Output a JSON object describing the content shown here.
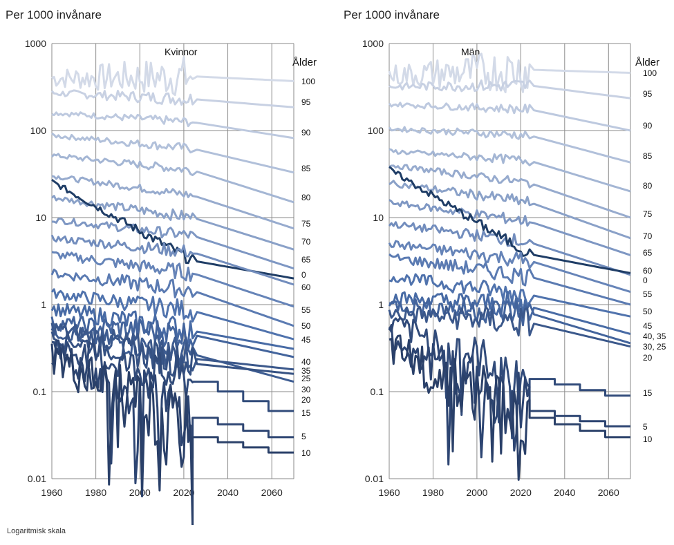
{
  "footnote": "Logaritmisk skala",
  "chart_data": [
    {
      "type": "line",
      "title": "Kvinnor",
      "ylabel": "Per 1000 invånare",
      "legend_title": "Ålder",
      "y_scale": "log",
      "ylim": [
        0.01,
        1000
      ],
      "xlim": [
        1960,
        2070
      ],
      "x_ticks": [
        1960,
        1980,
        2000,
        2020,
        2040,
        2060
      ],
      "y_ticks": [
        0.01,
        0.1,
        1,
        10,
        100,
        1000
      ],
      "y_tick_labels": [
        "0.01",
        "0.1",
        "1",
        "10",
        "100",
        "1000"
      ],
      "series": [
        {
          "name": "100",
          "start": 400,
          "at2024": 420,
          "end": 370,
          "noise": 0.18,
          "color": "#d3dae8"
        },
        {
          "name": "95",
          "start": 270,
          "at2024": 230,
          "end": 185,
          "noise": 0.06,
          "color": "#c8d1e3"
        },
        {
          "name": "90",
          "start": 160,
          "at2024": 125,
          "end": 82,
          "noise": 0.04,
          "color": "#bdc9df"
        },
        {
          "name": "85",
          "start": 88,
          "at2024": 62,
          "end": 33,
          "noise": 0.04,
          "color": "#b1c0da"
        },
        {
          "name": "80",
          "start": 52,
          "at2024": 35,
          "end": 15,
          "noise": 0.04,
          "color": "#a4b6d4"
        },
        {
          "name": "75",
          "start": 30,
          "at2024": 18,
          "end": 7.5,
          "noise": 0.04,
          "color": "#97abce"
        },
        {
          "name": "70",
          "start": 17,
          "at2024": 10,
          "end": 4.3,
          "noise": 0.05,
          "color": "#8aa1c8"
        },
        {
          "name": "65",
          "start": 9.5,
          "at2024": 6.2,
          "end": 2.6,
          "noise": 0.05,
          "color": "#7e97c3"
        },
        {
          "name": "0",
          "start": 26,
          "at2024": 3.2,
          "end": 2.0,
          "noise": 0.05,
          "color": "#1f3d66"
        },
        {
          "name": "60",
          "start": 5.8,
          "at2024": 4.0,
          "end": 1.7,
          "noise": 0.06,
          "color": "#728dbd"
        },
        {
          "name": "55",
          "start": 3.8,
          "at2024": 2.3,
          "end": 0.95,
          "noise": 0.07,
          "color": "#6684b8"
        },
        {
          "name": "50",
          "start": 2.3,
          "at2024": 1.45,
          "end": 0.57,
          "noise": 0.08,
          "color": "#5b7bb2"
        },
        {
          "name": "45",
          "start": 1.35,
          "at2024": 0.85,
          "end": 0.4,
          "noise": 0.09,
          "color": "#5073ad"
        },
        {
          "name": "40",
          "start": 0.9,
          "at2024": 0.5,
          "end": 0.31,
          "noise": 0.12,
          "color": "#486ba5"
        },
        {
          "name": "35",
          "start": 0.62,
          "at2024": 0.45,
          "end": 0.25,
          "noise": 0.13,
          "color": "#43649c"
        },
        {
          "name": "25",
          "start": 0.5,
          "at2024": 0.27,
          "end": 0.13,
          "noise": 0.14,
          "color": "#3e5d92"
        },
        {
          "name": "30",
          "start": 0.55,
          "at2024": 0.24,
          "end": 0.18,
          "noise": 0.14,
          "color": "#3b588b"
        },
        {
          "name": "20",
          "start": 0.42,
          "at2024": 0.21,
          "end": 0.16,
          "noise": 0.15,
          "color": "#365283"
        },
        {
          "name": "15",
          "start": 0.33,
          "at2024": 0.13,
          "end": 0.06,
          "noise": 0.2,
          "color": "#314b7a",
          "step": true
        },
        {
          "name": "5",
          "start": 0.28,
          "at2024": 0.05,
          "end": 0.03,
          "noise": 0.28,
          "color": "#2d4572",
          "step": true
        },
        {
          "name": "10",
          "start": 0.26,
          "at2024": 0.03,
          "end": 0.02,
          "noise": 0.35,
          "color": "#2a4069",
          "step": true
        }
      ]
    },
    {
      "type": "line",
      "title": "Män",
      "ylabel": "Per 1000 invånare",
      "legend_title": "Ålder",
      "y_scale": "log",
      "ylim": [
        0.01,
        1000
      ],
      "xlim": [
        1960,
        2070
      ],
      "x_ticks": [
        1960,
        1980,
        2000,
        2020,
        2040,
        2060
      ],
      "y_ticks": [
        0.01,
        0.1,
        1,
        10,
        100,
        1000
      ],
      "y_tick_labels": [
        "0.01",
        "0.1",
        "1",
        "10",
        "100",
        "1000"
      ],
      "series": [
        {
          "name": "100",
          "start": 430,
          "at2024": 500,
          "end": 460,
          "noise": 0.2,
          "color": "#d3dae8"
        },
        {
          "name": "95",
          "start": 320,
          "at2024": 330,
          "end": 235,
          "noise": 0.06,
          "color": "#c8d1e3"
        },
        {
          "name": "90",
          "start": 200,
          "at2024": 175,
          "end": 100,
          "noise": 0.04,
          "color": "#bdc9df"
        },
        {
          "name": "85",
          "start": 105,
          "at2024": 88,
          "end": 43,
          "noise": 0.04,
          "color": "#b1c0da"
        },
        {
          "name": "80",
          "start": 58,
          "at2024": 45,
          "end": 20,
          "noise": 0.04,
          "color": "#a4b6d4"
        },
        {
          "name": "75",
          "start": 40,
          "at2024": 25,
          "end": 10,
          "noise": 0.04,
          "color": "#97abce"
        },
        {
          "name": "70",
          "start": 25,
          "at2024": 15,
          "end": 5.8,
          "noise": 0.05,
          "color": "#8aa1c8"
        },
        {
          "name": "65",
          "start": 15,
          "at2024": 9.0,
          "end": 3.7,
          "noise": 0.05,
          "color": "#7e97c3"
        },
        {
          "name": "60",
          "start": 8.5,
          "at2024": 5.2,
          "end": 2.2,
          "noise": 0.06,
          "color": "#728dbd"
        },
        {
          "name": "0",
          "start": 36,
          "at2024": 3.8,
          "end": 2.3,
          "noise": 0.05,
          "color": "#1f3d66"
        },
        {
          "name": "55",
          "start": 5.0,
          "at2024": 3.2,
          "end": 1.4,
          "noise": 0.07,
          "color": "#6684b8"
        },
        {
          "name": "50",
          "start": 3.5,
          "at2024": 2.1,
          "end": 1.0,
          "noise": 0.08,
          "color": "#5b7bb2"
        },
        {
          "name": "45",
          "start": 2.1,
          "at2024": 1.3,
          "end": 0.73,
          "noise": 0.09,
          "color": "#5073ad"
        },
        {
          "name": "40, 35",
          "start": 1.2,
          "at2024": 0.95,
          "end": 0.46,
          "noise": 0.12,
          "color": "#486ba5"
        },
        {
          "name": "30, 25",
          "start": 1.0,
          "at2024": 0.8,
          "end": 0.36,
          "noise": 0.13,
          "color": "#43649c"
        },
        {
          "name": "20",
          "start": 0.8,
          "at2024": 0.62,
          "end": 0.33,
          "noise": 0.14,
          "color": "#3b588b"
        },
        {
          "name": "15",
          "start": 0.6,
          "at2024": 0.14,
          "end": 0.09,
          "noise": 0.22,
          "color": "#314b7a",
          "step": true
        },
        {
          "name": "5",
          "start": 0.4,
          "at2024": 0.06,
          "end": 0.04,
          "noise": 0.3,
          "color": "#2d4572",
          "step": true
        },
        {
          "name": "10",
          "start": 0.3,
          "at2024": 0.05,
          "end": 0.03,
          "noise": 0.35,
          "color": "#2a4069",
          "step": true
        }
      ]
    }
  ]
}
